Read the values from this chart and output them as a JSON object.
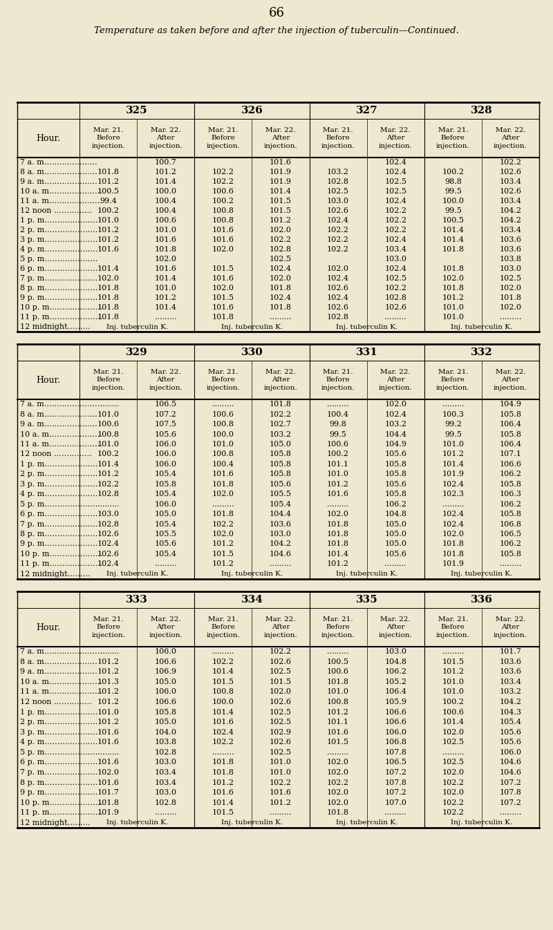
{
  "page_number": "66",
  "title": "Temperature as taken before and after the injection of tuberculin—Continued.",
  "bg_color": "#ede8cf",
  "tables": [
    {
      "headers": [
        "325",
        "326",
        "327",
        "328"
      ],
      "hours": [
        "7 a. m",
        "8 a. m",
        "9 a. m",
        "10 a. m",
        "11 a. m",
        "12 noon",
        "1 p. m",
        "2 p. m",
        "3 p. m",
        "4 p. m",
        "5 p. m",
        "6 p. m",
        "7 p. m",
        "8 p. m",
        "9 p. m",
        "10 p. m",
        "11 p. m",
        "12 midnight"
      ],
      "data": [
        [
          "",
          "100.7",
          "",
          "101.6",
          "",
          "102.4",
          "",
          "102.2"
        ],
        [
          "101.8",
          "101.2",
          "102.2",
          "101.9",
          "103.2",
          "102.4",
          "100.2",
          "102.6"
        ],
        [
          "101.2",
          "101.4",
          "102.2",
          "101.9",
          "102.8",
          "102.5",
          "98.8",
          "103.4"
        ],
        [
          "100.5",
          "100.0",
          "100.6",
          "101.4",
          "102.5",
          "102.5",
          "99.5",
          "102.6"
        ],
        [
          "99.4",
          "100.4",
          "100.2",
          "101.5",
          "103.0",
          "102.4",
          "100.0",
          "103.4"
        ],
        [
          "100.2",
          "100.4",
          "100.8",
          "101.5",
          "102.6",
          "102.2",
          "99.5",
          "104.2"
        ],
        [
          "101.0",
          "100.6",
          "100.8",
          "101.2",
          "102.4",
          "102.2",
          "100.5",
          "104.2"
        ],
        [
          "101.2",
          "101.0",
          "101.6",
          "102.0",
          "102.2",
          "102.2",
          "101.4",
          "103.4"
        ],
        [
          "101.2",
          "101.6",
          "101.6",
          "102.2",
          "102.2",
          "102.4",
          "101.4",
          "103.6"
        ],
        [
          "101.6",
          "101.8",
          "102.0",
          "102.8",
          "102.2",
          "103.4",
          "101.8",
          "103.6"
        ],
        [
          "",
          "102.0",
          "",
          "102.5",
          "",
          "103.0",
          "",
          "103.8"
        ],
        [
          "101.4",
          "101.6",
          "101.5",
          "102.4",
          "102.0",
          "102.4",
          "101.8",
          "103.0"
        ],
        [
          "102.0",
          "101.4",
          "101.6",
          "102.0",
          "102.4",
          "102.5",
          "102.0",
          "102.5"
        ],
        [
          "101.8",
          "101.0",
          "102.0",
          "101.8",
          "102.6",
          "102.2",
          "101.8",
          "102.0"
        ],
        [
          "101.8",
          "101.2",
          "101.5",
          "102.4",
          "102.4",
          "102.8",
          "101.2",
          "101.8"
        ],
        [
          "101.8",
          "101.4",
          "101.6",
          "101.8",
          "102.6",
          "102.6",
          "101.0",
          "102.0"
        ],
        [
          "101.8",
          ".........",
          "101.8",
          ".........",
          "102.8",
          ".........",
          "101.0",
          "........."
        ],
        [
          "INJ",
          "",
          "INJ",
          "",
          "INJ",
          "",
          "INJ",
          ""
        ]
      ]
    },
    {
      "headers": [
        "329",
        "330",
        "331",
        "332"
      ],
      "hours": [
        "7 a. m",
        "8 a. m",
        "9 a. m",
        "10 a. m",
        "11 a. m",
        "12 noon",
        "1 p. m",
        "2 p. m",
        "3 p. m",
        "4 p. m",
        "5 p. m",
        "6 p. m",
        "7 p. m",
        "8 p. m",
        "9 p. m",
        "10 p. m",
        "11 p. m",
        "12 midnight"
      ],
      "data": [
        [
          ".........",
          "106.5",
          ".........",
          "101.8",
          ".........",
          "102.0",
          ".........",
          "104.9"
        ],
        [
          "101.0",
          "107.2",
          "100.6",
          "102.2",
          "100.4",
          "102.4",
          "100.3",
          "105.8"
        ],
        [
          "100.6",
          "107.5",
          "100.8",
          "102.7",
          "99.8",
          "103.2",
          "99.2",
          "106.4"
        ],
        [
          "100.8",
          "105.6",
          "100.0",
          "103.2",
          "99.5",
          "104.4",
          "99.5",
          "105.8"
        ],
        [
          "101.0",
          "106.0",
          "101.0",
          "105.0",
          "100.6",
          "104.9",
          "101.0",
          "106.4"
        ],
        [
          "100.2",
          "106.0",
          "100.8",
          "105.8",
          "100.2",
          "105.6",
          "101.2",
          "107.1"
        ],
        [
          "101.4",
          "106.0",
          "100.4",
          "105.8",
          "101.1",
          "105.8",
          "101.4",
          "106.6"
        ],
        [
          "101.2",
          "105.4",
          "101.6",
          "105.8",
          "101.0",
          "105.8",
          "101.9",
          "106.2"
        ],
        [
          "102.2",
          "105.8",
          "101.8",
          "105.6",
          "101.2",
          "105.6",
          "102.4",
          "105.8"
        ],
        [
          "102.8",
          "105.4",
          "102.0",
          "105.5",
          "101.6",
          "105.8",
          "102.3",
          "106.3"
        ],
        [
          ".........",
          "106.0",
          ".........",
          "105.4",
          ".........",
          "106.2",
          ".........",
          "106.2"
        ],
        [
          "103.0",
          "105.0",
          "101.8",
          "104.4",
          "102.0",
          "104.8",
          "102.4",
          "105.8"
        ],
        [
          "102.8",
          "105.4",
          "102.2",
          "103.6",
          "101.8",
          "105.0",
          "102.4",
          "106.8"
        ],
        [
          "102.6",
          "105.5",
          "102.0",
          "103.0",
          "101.8",
          "105.0",
          "102.0",
          "106.5"
        ],
        [
          "102.4",
          "105.6",
          "101.2",
          "104.2",
          "101.8",
          "105.0",
          "101.8",
          "106.2"
        ],
        [
          "102.6",
          "105.4",
          "101.5",
          "104.6",
          "101.4",
          "105.6",
          "101.8",
          "105.8"
        ],
        [
          "102.4",
          ".........",
          "101.2",
          ".........",
          "101.2",
          ".........",
          "101.9",
          "........."
        ],
        [
          "INJ",
          "",
          "INJ",
          "",
          "INJ",
          "",
          "INJ",
          ""
        ]
      ]
    },
    {
      "headers": [
        "333",
        "334",
        "335",
        "336"
      ],
      "hours": [
        "7 a. m",
        "8 a. m",
        "9 a. m",
        "10 a. m",
        "11 a. m",
        "12 noon",
        "1 p. m",
        "2 p. m",
        "3 p. m",
        "4 p. m",
        "5 p. m",
        "6 p. m",
        "7 p. m",
        "8 p. m",
        "9 p. m",
        "10 p. m",
        "11 p. m",
        "12 midnight"
      ],
      "data": [
        [
          ".........",
          "106.0",
          ".........",
          "102.2",
          ".........",
          "103.0",
          ".........",
          "101.7"
        ],
        [
          "101.2",
          "106.6",
          "102.2",
          "102.6",
          "100.5",
          "104.8",
          "101.5",
          "103.6"
        ],
        [
          "101.2",
          "106.9",
          "101.4",
          "102.5",
          "100.6",
          "106.2",
          "101.2",
          "103.6"
        ],
        [
          "101.3",
          "105.0",
          "101.5",
          "101.5",
          "101.8",
          "105.2",
          "101.0",
          "103.4"
        ],
        [
          "101.2",
          "106.0",
          "100.8",
          "102.0",
          "101.0",
          "106.4",
          "101.0",
          "103.2"
        ],
        [
          "101.2",
          "106.6",
          "100.0",
          "102.6",
          "100.8",
          "105.9",
          "100.2",
          "104.2"
        ],
        [
          "101.0",
          "105.8",
          "101.4",
          "102.5",
          "101.2",
          "106.6",
          "100.6",
          "104.3"
        ],
        [
          "101.2",
          "105.0",
          "101.6",
          "102.5",
          "101.1",
          "106.6",
          "101.4",
          "105.4"
        ],
        [
          "101.6",
          "104.0",
          "102.4",
          "102.9",
          "101.6",
          "106.0",
          "102.0",
          "105.6"
        ],
        [
          "101.6",
          "103.8",
          "102.2",
          "102.6",
          "101.5",
          "106.8",
          "102.5",
          "105.6"
        ],
        [
          ".........",
          "102.8",
          ".........",
          "102.5",
          ".........",
          "107.8",
          ".........",
          "106.0"
        ],
        [
          "101.6",
          "103.0",
          "101.8",
          "101.0",
          "102.0",
          "106.5",
          "102.5",
          "104.6"
        ],
        [
          "102.0",
          "103.4",
          "101.8",
          "101.0",
          "102.0",
          "107.2",
          "102.0",
          "104.6"
        ],
        [
          "101.6",
          "103.4",
          "101.2",
          "102.2",
          "102.2",
          "107.8",
          "102.2",
          "107.2"
        ],
        [
          "101.7",
          "103.0",
          "101.6",
          "101.6",
          "102.0",
          "107.2",
          "102.0",
          "107.8"
        ],
        [
          "101.8",
          "102.8",
          "101.4",
          "101.2",
          "102.0",
          "107.0",
          "102.2",
          "107.2"
        ],
        [
          "101.9",
          ".........",
          "101.5",
          ".........",
          "101.8",
          ".........",
          "102.2",
          "........."
        ],
        [
          "INJ",
          "",
          "INJ",
          "",
          "INJ",
          "",
          "INJ",
          ""
        ]
      ]
    }
  ]
}
